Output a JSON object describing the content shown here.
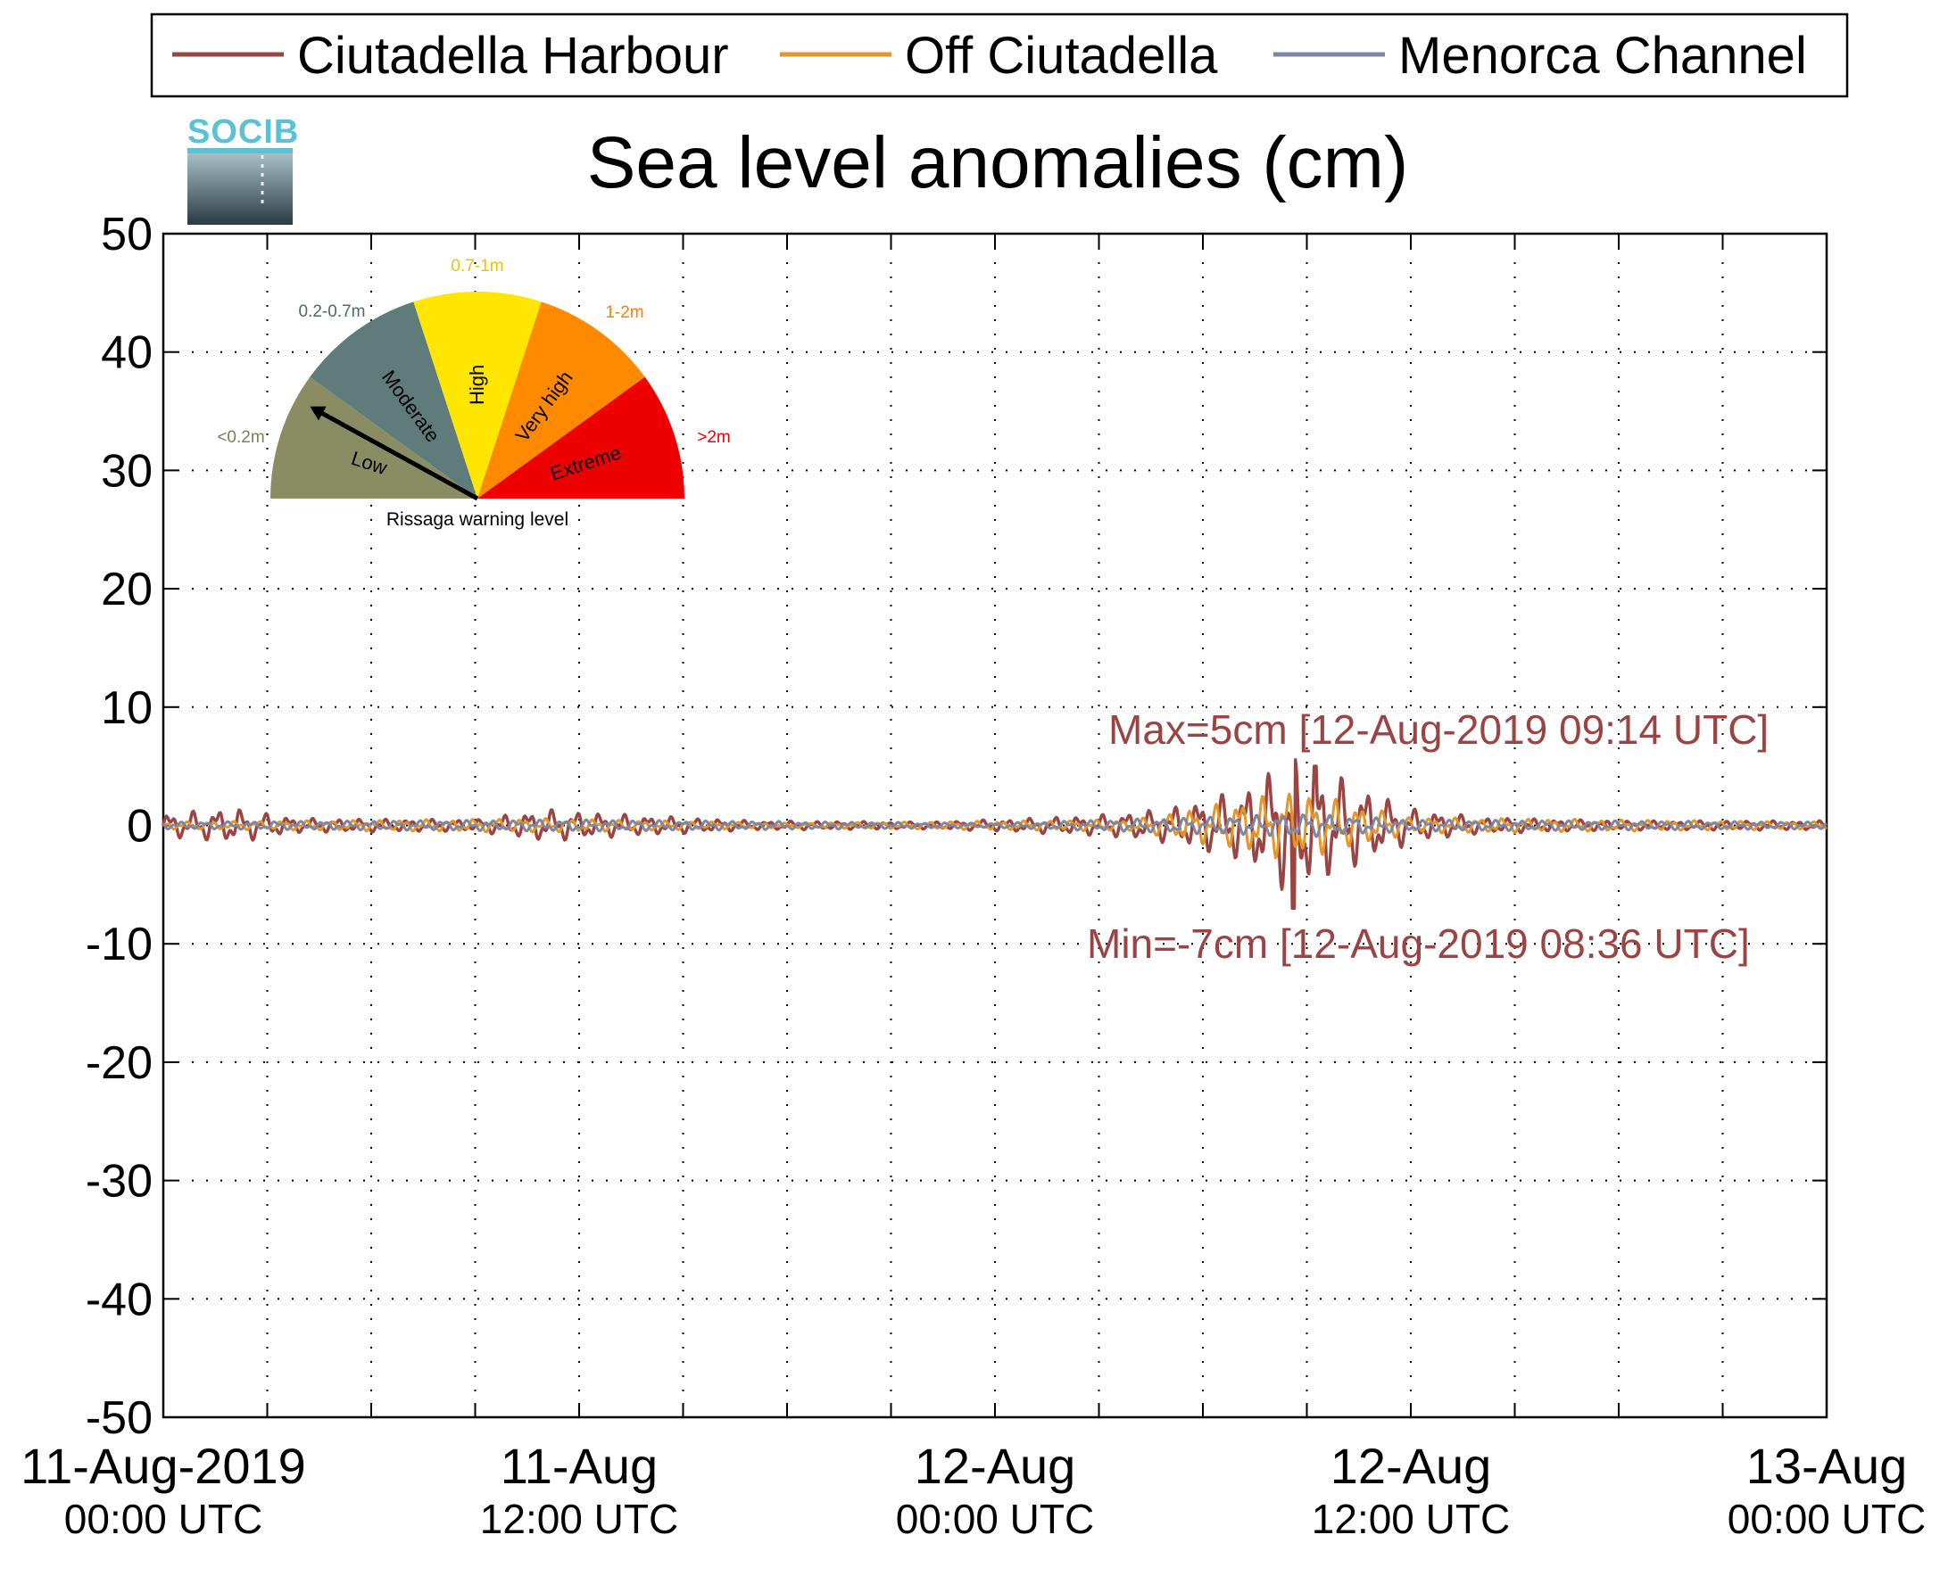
{
  "legend": {
    "items": [
      {
        "label": "Ciutadella Harbour",
        "color": "#9a4444"
      },
      {
        "label": "Off Ciutadella",
        "color": "#e3962a"
      },
      {
        "label": "Menorca Channel",
        "color": "#7d87a3"
      }
    ]
  },
  "logo": {
    "text": "SOCIB"
  },
  "gauge": {
    "caption": "Rissaga warning level",
    "needle_level": "Low",
    "segments": [
      {
        "name": "Low",
        "range": "<0.2m",
        "color": "#8a8d63",
        "label_color": "#7d7f57"
      },
      {
        "name": "Moderate",
        "range": "0.2-0.7m",
        "color": "#5f7b7a",
        "label_color": "#4f6a6a"
      },
      {
        "name": "High",
        "range": "0.7-1m",
        "color": "#ffe600",
        "label_color": "#e8c500"
      },
      {
        "name": "Very high",
        "range": "1-2m",
        "color": "#ff8a00",
        "label_color": "#ff7f00"
      },
      {
        "name": "Extreme",
        "range": ">2m",
        "color": "#ee0000",
        "label_color": "#ee0000"
      }
    ]
  },
  "chart_data": {
    "type": "line",
    "title": "Sea level anomalies (cm)",
    "xlabel": "",
    "ylabel": "",
    "ylim": [
      -50,
      50
    ],
    "yticks": [
      "50",
      "40",
      "30",
      "20",
      "10",
      "0",
      "-10",
      "-20",
      "-30",
      "-40",
      "-50"
    ],
    "x_axis": {
      "start": "2019-08-11 00:00 UTC",
      "end": "2019-08-13 00:00 UTC",
      "major_tick_hours": 12,
      "grid_every_hours": 3,
      "tick_labels": [
        {
          "line1": "11-Aug-2019",
          "line2": "00:00 UTC"
        },
        {
          "line1": "11-Aug",
          "line2": "12:00 UTC"
        },
        {
          "line1": "12-Aug",
          "line2": "00:00 UTC"
        },
        {
          "line1": "12-Aug",
          "line2": "12:00 UTC"
        },
        {
          "line1": "13-Aug",
          "line2": "00:00 UTC"
        }
      ]
    },
    "grid": true,
    "legend_position": "top",
    "series": [
      {
        "name": "Ciutadella Harbour",
        "color": "#9a4444",
        "envelope": [
          {
            "time": "2019-08-11 00:00",
            "amp": 1.0
          },
          {
            "time": "2019-08-11 02:00",
            "amp": 1.5
          },
          {
            "time": "2019-08-11 04:00",
            "amp": 0.6
          },
          {
            "time": "2019-08-11 09:00",
            "amp": 0.5
          },
          {
            "time": "2019-08-11 11:00",
            "amp": 1.4
          },
          {
            "time": "2019-08-11 13:00",
            "amp": 1.0
          },
          {
            "time": "2019-08-11 17:00",
            "amp": 0.4
          },
          {
            "time": "2019-08-11 22:00",
            "amp": 0.3
          },
          {
            "time": "2019-08-12 00:00",
            "amp": 0.5
          },
          {
            "time": "2019-08-12 03:00",
            "amp": 0.9
          },
          {
            "time": "2019-08-12 05:00",
            "amp": 1.5
          },
          {
            "time": "2019-08-12 07:00",
            "amp": 3.0
          },
          {
            "time": "2019-08-12 08:36",
            "amp": 6.0
          },
          {
            "time": "2019-08-12 09:14",
            "amp": 5.0
          },
          {
            "time": "2019-08-12 10:30",
            "amp": 3.5
          },
          {
            "time": "2019-08-12 12:00",
            "amp": 1.5
          },
          {
            "time": "2019-08-12 14:00",
            "amp": 0.7
          },
          {
            "time": "2019-08-12 18:00",
            "amp": 0.4
          },
          {
            "time": "2019-08-13 00:00",
            "amp": 0.4
          }
        ],
        "max": {
          "value": 5,
          "time": "2019-08-12 09:14"
        },
        "min": {
          "value": -7,
          "time": "2019-08-12 08:36"
        }
      },
      {
        "name": "Off Ciutadella",
        "color": "#e3962a",
        "envelope": [
          {
            "time": "2019-08-11 00:00",
            "amp": 0.3
          },
          {
            "time": "2019-08-11 11:00",
            "amp": 0.6
          },
          {
            "time": "2019-08-11 18:00",
            "amp": 0.2
          },
          {
            "time": "2019-08-12 04:00",
            "amp": 0.5
          },
          {
            "time": "2019-08-12 08:30",
            "amp": 3.0
          },
          {
            "time": "2019-08-12 09:30",
            "amp": 2.5
          },
          {
            "time": "2019-08-12 12:00",
            "amp": 0.7
          },
          {
            "time": "2019-08-13 00:00",
            "amp": 0.3
          }
        ]
      },
      {
        "name": "Menorca Channel",
        "color": "#7d87a3",
        "envelope": [
          {
            "time": "2019-08-11 00:00",
            "amp": 0.3
          },
          {
            "time": "2019-08-11 12:00",
            "amp": 0.5
          },
          {
            "time": "2019-08-12 00:00",
            "amp": 0.2
          },
          {
            "time": "2019-08-12 09:00",
            "amp": 1.0
          },
          {
            "time": "2019-08-12 12:00",
            "amp": 0.5
          },
          {
            "time": "2019-08-13 00:00",
            "amp": 0.3
          }
        ]
      }
    ],
    "annotations": [
      {
        "id": "max",
        "text": "Max=5cm [12-Aug-2019 09:14 UTC]"
      },
      {
        "id": "min",
        "text": "Min=-7cm [12-Aug-2019 08:36 UTC]"
      }
    ]
  }
}
